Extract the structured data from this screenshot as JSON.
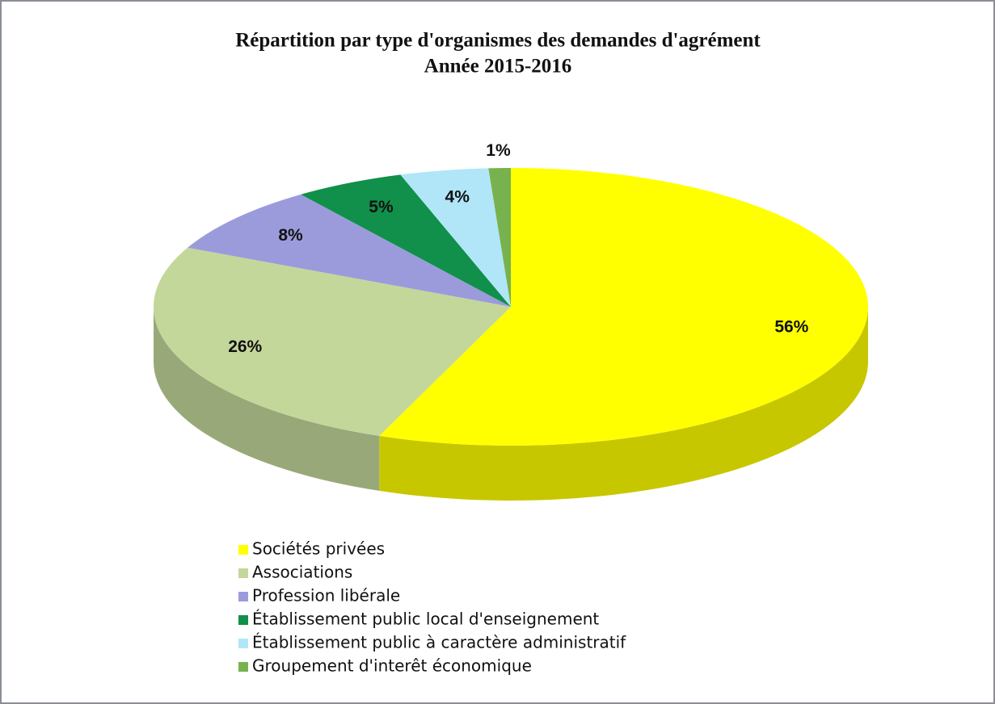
{
  "chart_data": {
    "type": "pie",
    "title": "Répartition par type d'organismes des demandes d'agrément",
    "subtitle": "Année 2015-2016",
    "categories": [
      "Sociétés privées",
      "Associations",
      "Profession libérale",
      "Établissement public local d'enseignement",
      "Établissement public à caractère administratif",
      "Groupement d'interêt économique"
    ],
    "values": [
      56,
      26,
      8,
      5,
      4,
      1
    ],
    "value_labels": [
      "56%",
      "26%",
      "8%",
      "5%",
      "4%",
      "1%"
    ],
    "colors": [
      "#ffff00",
      "#c4d79b",
      "#9b9bdc",
      "#10904a",
      "#b0e6f8",
      "#78b24e"
    ],
    "legend": "bottom"
  }
}
